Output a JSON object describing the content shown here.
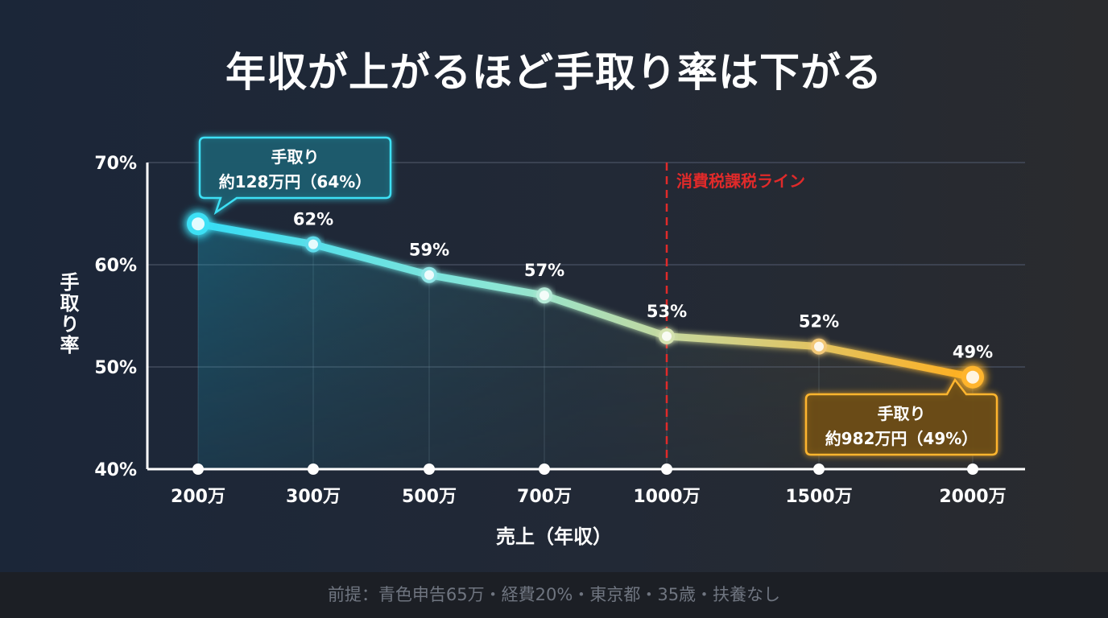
{
  "title": "年収が上がるほど手取り率は下がる",
  "footer": "前提：青色申告65万・経費20%・東京都・35歳・扶養なし",
  "colors": {
    "background": "#1e2634",
    "cyan": "#3de0f5",
    "amber": "#ffb52e",
    "tax_line": "#e02a2a",
    "axis": "#ffffff",
    "grid": "#4a5263"
  },
  "chart_data": {
    "type": "line",
    "categories": [
      "200万",
      "300万",
      "500万",
      "700万",
      "1000万",
      "1500万",
      "2000万"
    ],
    "values": [
      64,
      62,
      59,
      57,
      53,
      52,
      49
    ],
    "data_labels": [
      "",
      "62%",
      "59%",
      "57%",
      "53%",
      "52%",
      "49%"
    ],
    "ylabel": "手取り率",
    "xlabel": "売上（年収）",
    "ylim": [
      40,
      70
    ],
    "yticks": [
      40,
      50,
      60,
      70
    ],
    "ytick_labels": [
      "40%",
      "50%",
      "60%",
      "70%"
    ],
    "grid": true,
    "area_fill": true,
    "gradient": "cyan-to-amber",
    "reference_line": {
      "category": "1000万",
      "label": "消費税課税ライン"
    },
    "annotations": [
      {
        "category": "200万",
        "line1": "手取り",
        "line2": "約128万円（64%）",
        "color": "cyan"
      },
      {
        "category": "2000万",
        "line1": "手取り",
        "line2": "約982万円（49%）",
        "color": "amber"
      }
    ]
  }
}
